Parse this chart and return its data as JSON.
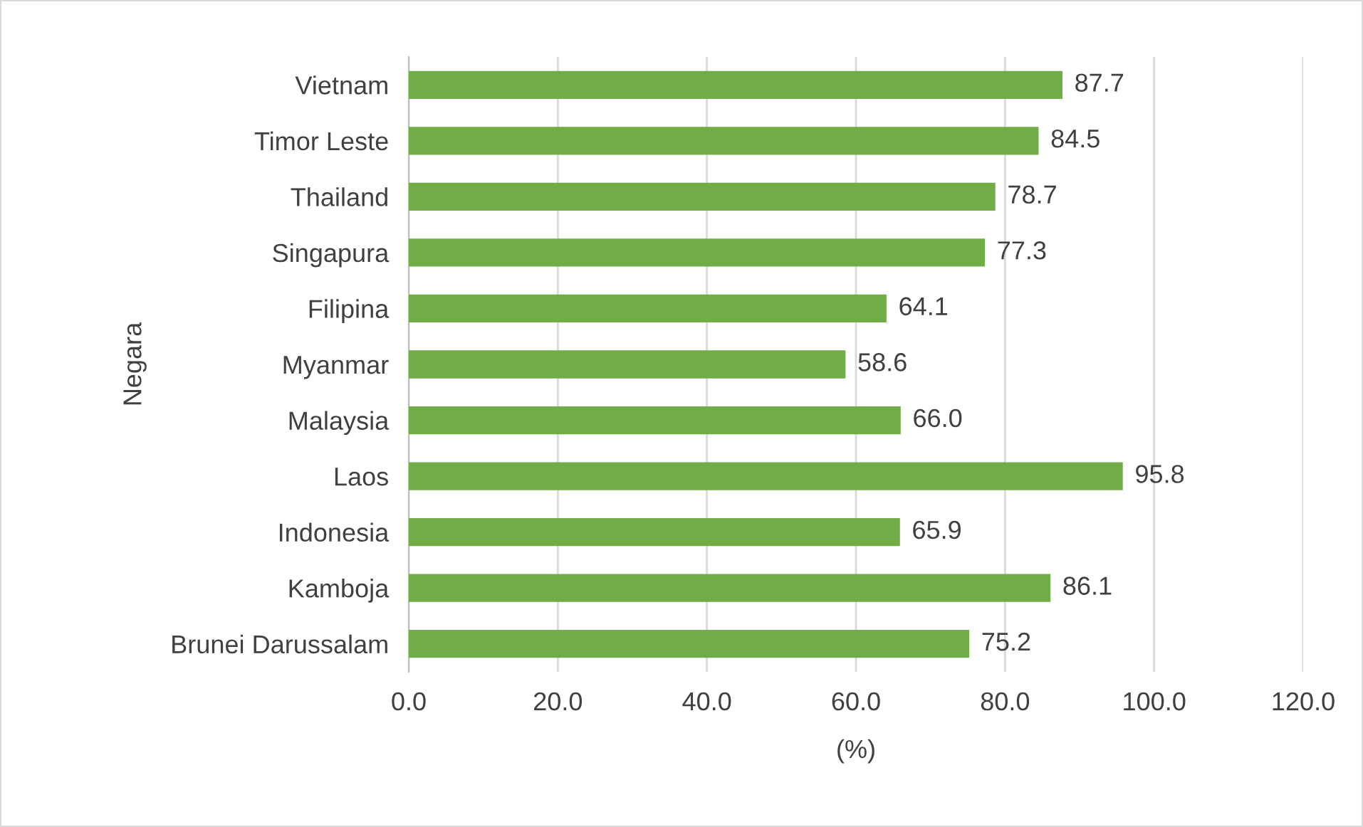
{
  "chart_data": {
    "type": "bar",
    "orientation": "horizontal",
    "ylabel": "Negara",
    "xlabel": "(%)",
    "categories": [
      "Vietnam",
      "Timor Leste",
      "Thailand",
      "Singapura",
      "Filipina",
      "Myanmar",
      "Malaysia",
      "Laos",
      "Indonesia",
      "Kamboja",
      "Brunei Darussalam"
    ],
    "values": [
      87.7,
      84.5,
      78.7,
      77.3,
      64.1,
      58.6,
      66.0,
      95.8,
      65.9,
      86.1,
      75.2
    ],
    "value_labels": [
      "87.7",
      "84.5",
      "78.7",
      "77.3",
      "64.1",
      "58.6",
      "66.0",
      "95.8",
      "65.9",
      "86.1",
      "75.2"
    ],
    "color": "#70ad47",
    "xlim": [
      0,
      120
    ],
    "xticks": [
      {
        "value": 0,
        "label": "0.0"
      },
      {
        "value": 20,
        "label": "20.0"
      },
      {
        "value": 40,
        "label": "40.0"
      },
      {
        "value": 60,
        "label": "60.0"
      },
      {
        "value": 80,
        "label": "80.0"
      },
      {
        "value": 100,
        "label": "100.0"
      },
      {
        "value": 120,
        "label": "120.0"
      }
    ],
    "grid": "x"
  }
}
